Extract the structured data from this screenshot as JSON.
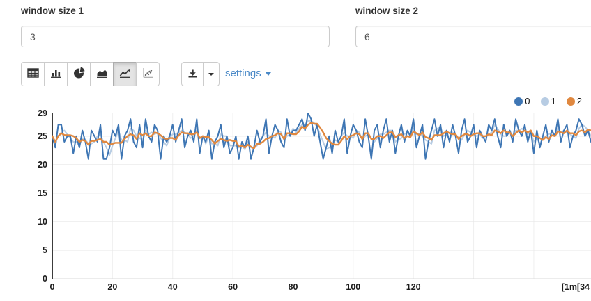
{
  "controls": {
    "window1": {
      "label": "window size 1",
      "value": "3"
    },
    "window2": {
      "label": "window size 2",
      "value": "6"
    }
  },
  "toolbar": {
    "chart_type_buttons": [
      {
        "name": "table",
        "icon": "table-icon",
        "active": false
      },
      {
        "name": "bar",
        "icon": "bar-chart-icon",
        "active": false
      },
      {
        "name": "pie",
        "icon": "pie-chart-icon",
        "active": false
      },
      {
        "name": "area",
        "icon": "area-chart-icon",
        "active": false
      },
      {
        "name": "line",
        "icon": "line-chart-icon",
        "active": true
      },
      {
        "name": "scatter",
        "icon": "scatter-chart-icon",
        "active": false
      }
    ],
    "download_icon": "download-icon",
    "settings_label": "settings"
  },
  "colors": {
    "series0": "#3e76b4",
    "series1": "#b7cce3",
    "series2": "#e0883f",
    "link_blue": "#4a89c7",
    "axis": "#3c3c3c",
    "grid": "#e7e7e7"
  },
  "chart_data": {
    "type": "line",
    "title": "",
    "xlabel": "",
    "ylabel": "",
    "x_axis_end_label": "[1m[34",
    "xlim": [
      0,
      179
    ],
    "ylim": [
      0,
      29
    ],
    "x_ticks": [
      0,
      20,
      40,
      60,
      80,
      100,
      120
    ],
    "x_grid": [
      20,
      40,
      60,
      80,
      100,
      120,
      140,
      160
    ],
    "y_ticks": [
      0,
      5,
      10,
      15,
      20,
      25
    ],
    "y_max_label": "29",
    "grid": true,
    "legend_position": "top-right",
    "series": [
      {
        "name": "0",
        "color": "#3e76b4",
        "kind": "raw",
        "z": 1,
        "width": 2,
        "values": [
          25,
          23,
          27,
          27,
          24,
          25,
          25,
          22,
          25,
          23,
          26,
          24,
          21,
          26,
          25,
          24,
          27,
          21,
          21,
          23,
          26,
          25,
          27,
          21,
          25,
          26,
          28,
          24,
          23,
          27,
          23,
          28,
          25,
          24,
          27,
          26,
          21,
          25,
          24,
          25,
          27,
          24,
          26,
          28,
          23,
          25,
          26,
          24,
          28,
          22,
          25,
          24,
          26,
          21,
          24,
          25,
          27,
          23,
          25,
          22,
          23,
          25,
          21,
          24,
          23,
          25,
          21,
          23,
          26,
          24,
          25,
          28,
          22,
          25,
          27,
          26,
          24,
          23,
          28,
          25,
          26,
          26,
          27,
          28,
          26,
          29,
          28,
          25,
          27,
          24,
          21,
          23,
          25,
          22,
          26,
          24,
          25,
          28,
          22,
          25,
          27,
          26,
          24,
          23,
          28,
          25,
          21,
          26,
          27,
          23,
          26,
          28,
          24,
          26,
          22,
          25,
          27,
          24,
          26,
          25,
          28,
          23,
          25,
          27,
          21,
          24,
          26,
          28,
          25,
          27,
          23,
          26,
          24,
          27,
          25,
          22,
          26,
          28,
          24,
          25,
          27,
          23,
          26,
          25,
          24,
          27,
          26,
          28,
          25,
          23,
          27,
          25,
          26,
          24,
          28,
          26,
          25,
          27,
          24,
          26,
          22,
          26,
          23,
          25,
          27,
          24,
          26,
          25,
          28,
          24,
          26,
          27,
          23,
          25,
          26,
          28,
          27,
          25,
          26,
          24
        ]
      },
      {
        "name": "1",
        "color": "#b7cce3",
        "kind": "moving_average",
        "window": 3,
        "source": "0",
        "z": 0,
        "width": 2
      },
      {
        "name": "2",
        "color": "#e0883f",
        "kind": "moving_average",
        "window": 6,
        "source": "0",
        "z": 2,
        "width": 2.4
      }
    ]
  }
}
